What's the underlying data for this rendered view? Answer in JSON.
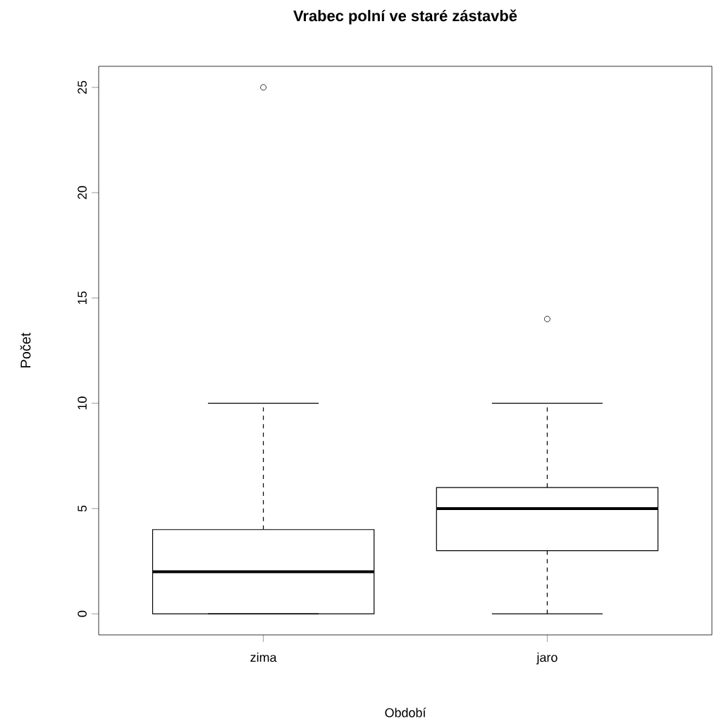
{
  "chart_data": {
    "type": "box",
    "title": "Vrabec polní ve staré zástavbě",
    "xlabel": "Období",
    "ylabel": "Počet",
    "categories": [
      "zima",
      "jaro"
    ],
    "boxes": [
      {
        "low": 0,
        "q1": 0,
        "median": 2,
        "q3": 4,
        "high": 10,
        "outliers": [
          25
        ]
      },
      {
        "low": 0,
        "q1": 3,
        "median": 5,
        "q3": 6,
        "high": 10,
        "outliers": [
          14
        ]
      }
    ],
    "ylim": [
      -1,
      26
    ],
    "yticks": [
      0,
      5,
      10,
      15,
      20,
      25
    ],
    "marker": "circle"
  }
}
